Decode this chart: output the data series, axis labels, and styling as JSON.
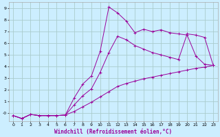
{
  "title": "",
  "xlabel": "Windchill (Refroidissement éolien,°C)",
  "ylabel": "",
  "background_color": "#cceeff",
  "grid_color": "#aacccc",
  "line_color": "#990099",
  "xlim": [
    -0.5,
    23.5
  ],
  "ylim": [
    -0.7,
    9.5
  ],
  "xticks": [
    0,
    1,
    2,
    3,
    4,
    5,
    6,
    7,
    8,
    9,
    10,
    11,
    12,
    13,
    14,
    15,
    16,
    17,
    18,
    19,
    20,
    21,
    22,
    23
  ],
  "yticks": [
    0,
    1,
    2,
    3,
    4,
    5,
    6,
    7,
    8,
    9
  ],
  "ytick_labels": [
    "-0",
    "1",
    "2",
    "3",
    "4",
    "5",
    "6",
    "7",
    "8",
    "9"
  ],
  "line1_x": [
    0,
    1,
    2,
    3,
    4,
    5,
    6,
    7,
    8,
    9,
    10,
    11,
    12,
    13,
    14,
    15,
    16,
    17,
    18,
    19,
    20,
    21,
    22,
    23
  ],
  "line1_y": [
    -0.2,
    -0.45,
    -0.1,
    -0.2,
    -0.2,
    -0.2,
    -0.15,
    1.3,
    2.5,
    3.2,
    5.3,
    9.1,
    8.6,
    7.9,
    6.9,
    7.2,
    7.0,
    7.15,
    6.9,
    6.8,
    6.7,
    4.9,
    4.2,
    4.1
  ],
  "line2_x": [
    0,
    1,
    2,
    3,
    4,
    5,
    6,
    7,
    8,
    9,
    10,
    11,
    12,
    13,
    14,
    15,
    16,
    17,
    18,
    19,
    20,
    21,
    22,
    23
  ],
  "line2_y": [
    -0.2,
    -0.45,
    -0.1,
    -0.2,
    -0.2,
    -0.2,
    -0.15,
    0.7,
    1.5,
    2.1,
    3.5,
    5.2,
    6.6,
    6.3,
    5.8,
    5.5,
    5.2,
    5.0,
    4.8,
    4.6,
    6.8,
    6.7,
    6.5,
    4.1
  ],
  "line3_x": [
    0,
    1,
    2,
    3,
    4,
    5,
    6,
    7,
    8,
    9,
    10,
    11,
    12,
    13,
    14,
    15,
    16,
    17,
    18,
    19,
    20,
    21,
    22,
    23
  ],
  "line3_y": [
    -0.2,
    -0.45,
    -0.1,
    -0.2,
    -0.2,
    -0.2,
    -0.15,
    0.15,
    0.55,
    0.95,
    1.4,
    1.85,
    2.3,
    2.55,
    2.75,
    2.95,
    3.1,
    3.25,
    3.4,
    3.55,
    3.7,
    3.85,
    3.95,
    4.1
  ]
}
